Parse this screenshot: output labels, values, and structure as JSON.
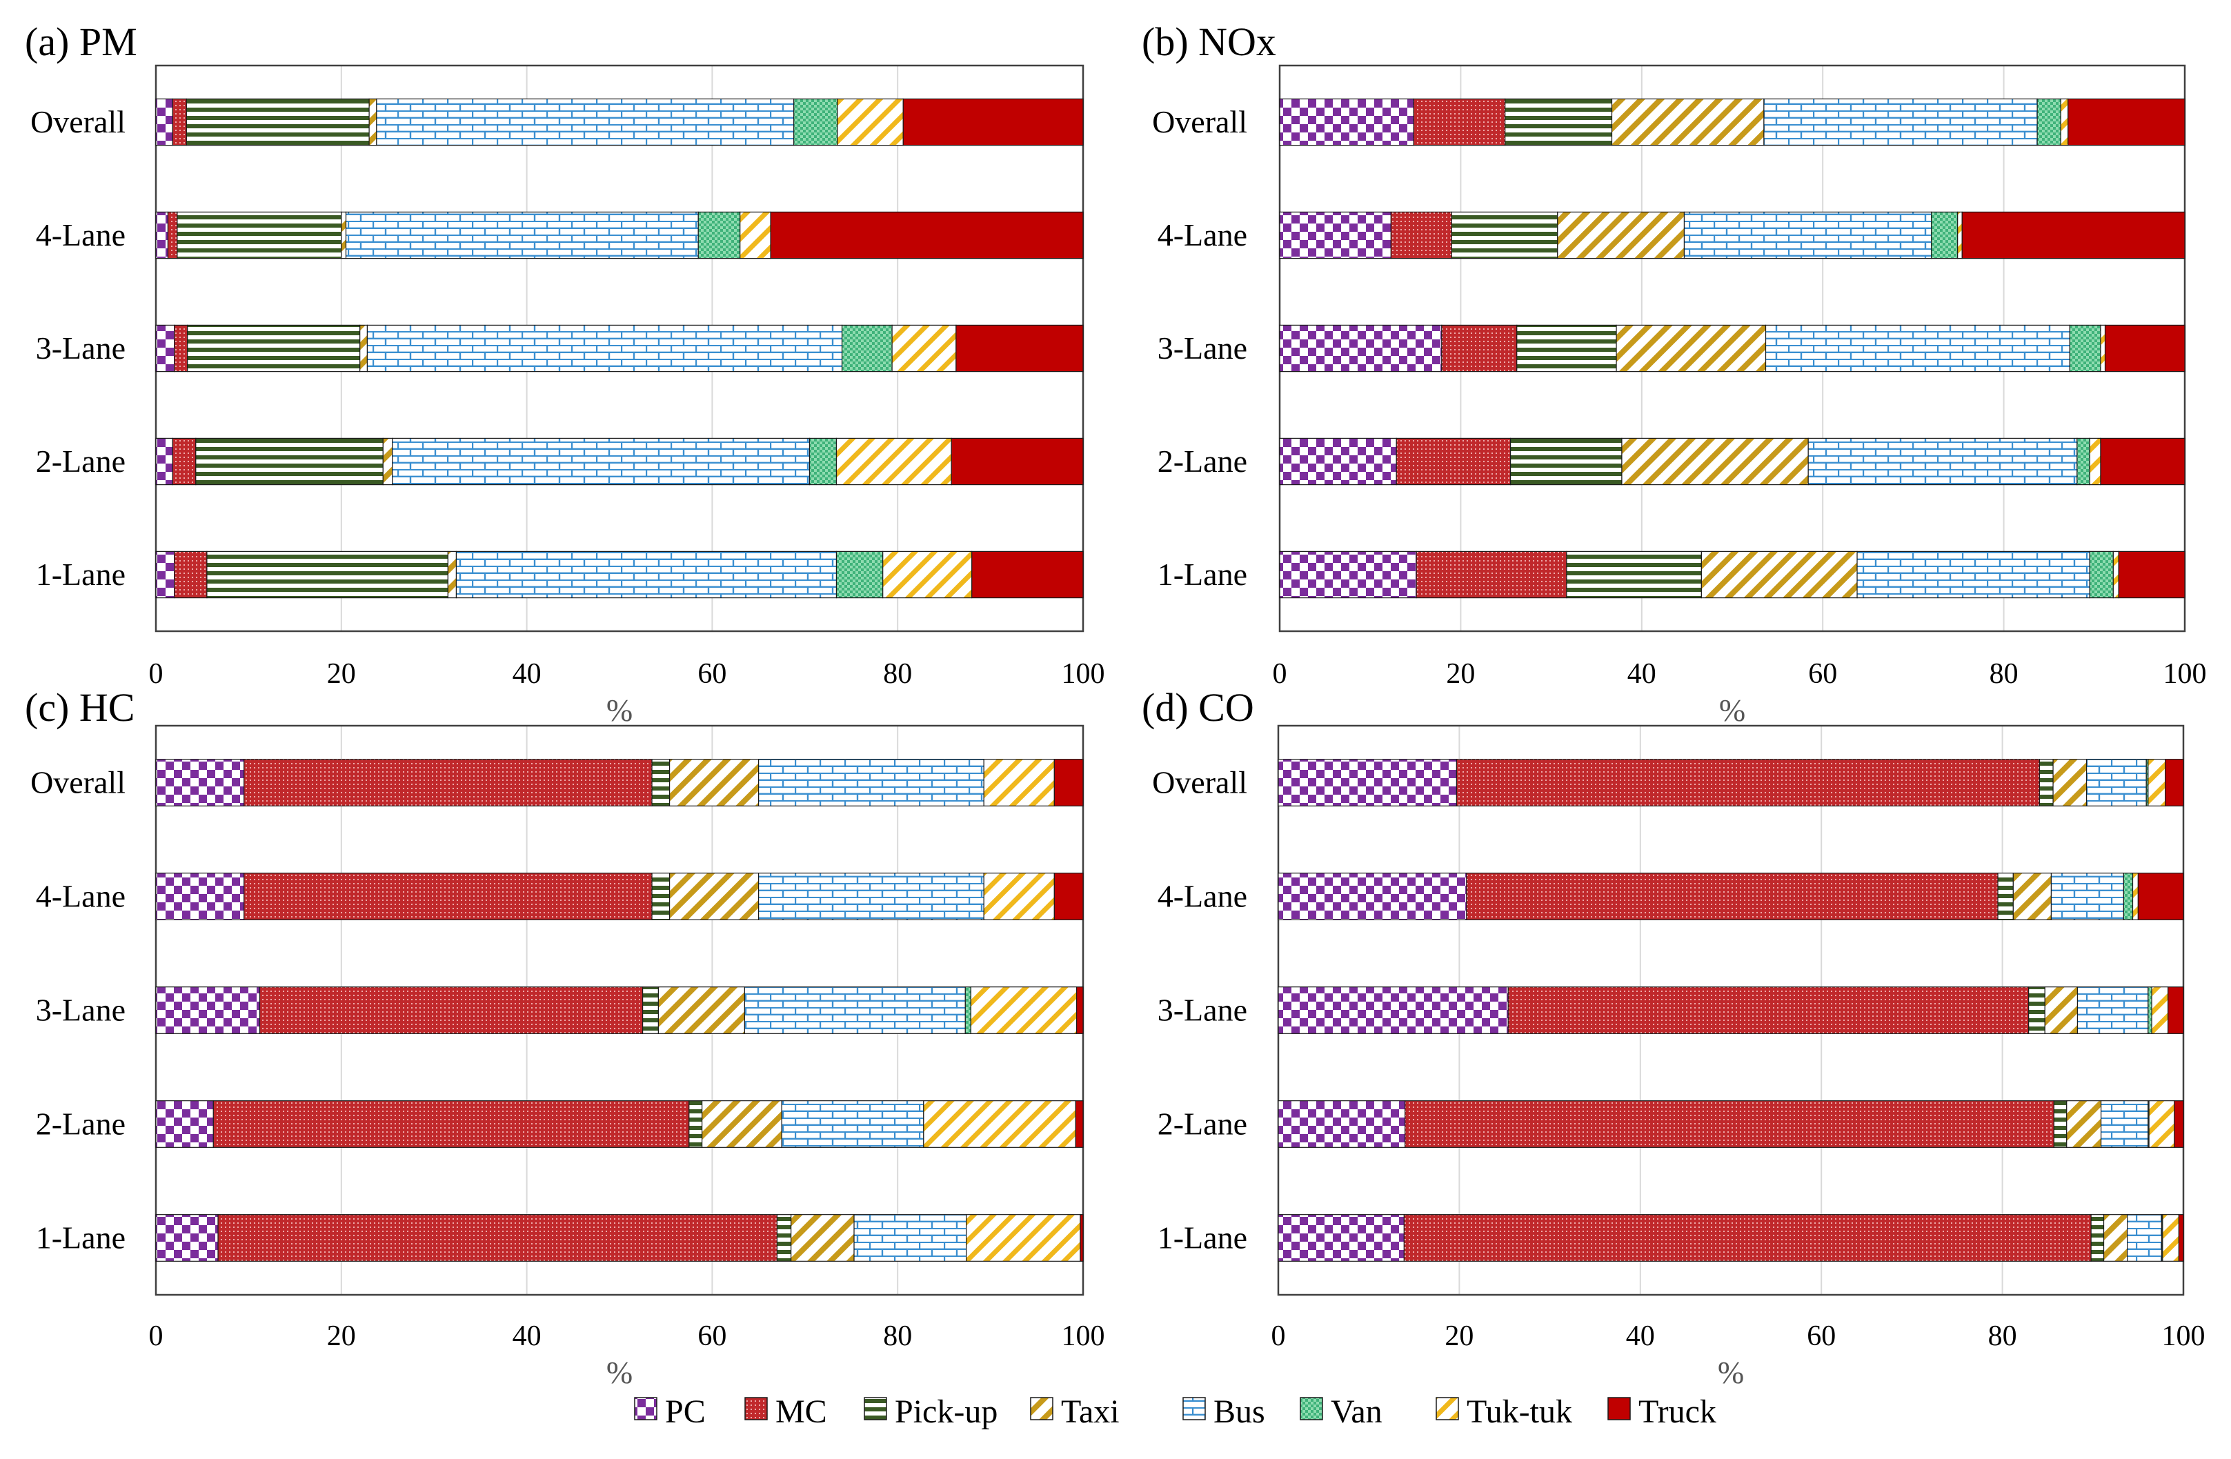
{
  "chart_data": [
    {
      "id": "pm",
      "type": "bar",
      "orientation": "horizontal",
      "stacked": true,
      "title": "(a) PM",
      "xlabel": "%",
      "xlim": [
        0,
        100
      ],
      "xticks": [
        "0",
        "20",
        "40",
        "60",
        "80",
        "100"
      ],
      "categories": [
        "Overall",
        "4-Lane",
        "3-Lane",
        "2-Lane",
        "1-Lane"
      ],
      "series": [
        {
          "name": "PC",
          "values": [
            1.8,
            1.3,
            2.0,
            1.8,
            2.0
          ]
        },
        {
          "name": "MC",
          "values": [
            1.5,
            1.0,
            1.4,
            2.5,
            3.5
          ]
        },
        {
          "name": "Pick-up",
          "values": [
            19.7,
            17.7,
            18.6,
            20.2,
            26.0
          ]
        },
        {
          "name": "Taxi",
          "values": [
            0.8,
            0.5,
            0.8,
            1.0,
            0.9
          ]
        },
        {
          "name": "Bus",
          "values": [
            45.0,
            38.0,
            51.2,
            45.0,
            41.0
          ]
        },
        {
          "name": "Van",
          "values": [
            4.7,
            4.5,
            5.4,
            2.9,
            5.0
          ]
        },
        {
          "name": "Tuk-tuk",
          "values": [
            7.1,
            3.3,
            6.9,
            12.4,
            9.6
          ]
        },
        {
          "name": "Truck",
          "values": [
            19.4,
            33.7,
            13.7,
            14.2,
            12.0
          ]
        }
      ]
    },
    {
      "id": "nox",
      "type": "bar",
      "orientation": "horizontal",
      "stacked": true,
      "title": "(b) NOx",
      "xlabel": "%",
      "xlim": [
        0,
        100
      ],
      "xticks": [
        "0",
        "20",
        "40",
        "60",
        "80",
        "100"
      ],
      "categories": [
        "Overall",
        "4-Lane",
        "3-Lane",
        "2-Lane",
        "1-Lane"
      ],
      "series": [
        {
          "name": "PC",
          "values": [
            14.8,
            12.3,
            17.9,
            12.9,
            15.1
          ]
        },
        {
          "name": "MC",
          "values": [
            10.1,
            6.7,
            8.3,
            12.6,
            16.6
          ]
        },
        {
          "name": "Pick-up",
          "values": [
            11.8,
            11.7,
            11.0,
            12.3,
            14.9
          ]
        },
        {
          "name": "Taxi",
          "values": [
            16.8,
            14.0,
            16.5,
            20.6,
            17.2
          ]
        },
        {
          "name": "Bus",
          "values": [
            30.2,
            27.3,
            33.6,
            29.7,
            25.7
          ]
        },
        {
          "name": "Van",
          "values": [
            2.6,
            2.9,
            3.4,
            1.4,
            2.6
          ]
        },
        {
          "name": "Tuk-tuk",
          "values": [
            0.8,
            0.5,
            0.5,
            1.2,
            0.6
          ]
        },
        {
          "name": "Truck",
          "values": [
            12.9,
            24.6,
            8.8,
            9.3,
            7.3
          ]
        }
      ]
    },
    {
      "id": "hc",
      "type": "bar",
      "orientation": "horizontal",
      "stacked": true,
      "title": "(c) HC",
      "xlabel": "%",
      "xlim": [
        0,
        100
      ],
      "xticks": [
        "0",
        "20",
        "40",
        "60",
        "80",
        "100"
      ],
      "categories": [
        "Overall",
        "4-Lane",
        "3-Lane",
        "2-Lane",
        "1-Lane"
      ],
      "series": [
        {
          "name": "PC",
          "values": [
            9.5,
            9.5,
            11.2,
            6.2,
            6.7
          ]
        },
        {
          "name": "MC",
          "values": [
            44.0,
            44.0,
            41.3,
            51.3,
            60.3
          ]
        },
        {
          "name": "Pick-up",
          "values": [
            1.9,
            1.9,
            1.7,
            1.4,
            1.5
          ]
        },
        {
          "name": "Taxi",
          "values": [
            9.6,
            9.6,
            9.3,
            8.6,
            6.8
          ]
        },
        {
          "name": "Bus",
          "values": [
            24.3,
            24.3,
            23.8,
            15.3,
            12.1
          ]
        },
        {
          "name": "Van",
          "values": [
            0.0,
            0.0,
            0.6,
            0.0,
            0.0
          ]
        },
        {
          "name": "Tuk-tuk",
          "values": [
            7.6,
            7.6,
            11.4,
            16.4,
            12.3
          ]
        },
        {
          "name": "Truck",
          "values": [
            3.1,
            3.1,
            0.7,
            0.8,
            0.3
          ]
        }
      ]
    },
    {
      "id": "co",
      "type": "bar",
      "orientation": "horizontal",
      "stacked": true,
      "title": "(d) CO",
      "xlabel": "%",
      "xlim": [
        0,
        100
      ],
      "xticks": [
        "0",
        "20",
        "40",
        "60",
        "80",
        "100"
      ],
      "categories": [
        "Overall",
        "4-Lane",
        "3-Lane",
        "2-Lane",
        "1-Lane"
      ],
      "series": [
        {
          "name": "PC",
          "values": [
            19.7,
            20.8,
            25.4,
            14.0,
            13.9
          ]
        },
        {
          "name": "MC",
          "values": [
            64.4,
            58.7,
            57.5,
            71.7,
            75.9
          ]
        },
        {
          "name": "Pick-up",
          "values": [
            1.5,
            1.7,
            1.8,
            1.4,
            1.4
          ]
        },
        {
          "name": "Taxi",
          "values": [
            3.7,
            4.2,
            3.6,
            3.8,
            2.6
          ]
        },
        {
          "name": "Bus",
          "values": [
            6.6,
            8.0,
            7.8,
            5.2,
            3.8
          ]
        },
        {
          "name": "Van",
          "values": [
            0.2,
            1.0,
            0.4,
            0.1,
            0.1
          ]
        },
        {
          "name": "Tuk-tuk",
          "values": [
            1.9,
            0.6,
            1.8,
            2.8,
            1.8
          ]
        },
        {
          "name": "Truck",
          "values": [
            2.0,
            5.0,
            1.7,
            1.0,
            0.5
          ]
        }
      ]
    }
  ],
  "legend": {
    "items": [
      "PC",
      "MC",
      "Pick-up",
      "Taxi",
      "Bus",
      "Van",
      "Tuk-tuk",
      "Truck"
    ],
    "colors": {
      "PC": "#7b2d9c",
      "MC": "#c0282b",
      "Pick-up": "#3a5a24",
      "Taxi": "#c79a1a",
      "Bus": "#3a8fd0",
      "Van": "#4fc08a",
      "Tuk-tuk": "#f0b81c",
      "Truck": "#c00000"
    }
  }
}
